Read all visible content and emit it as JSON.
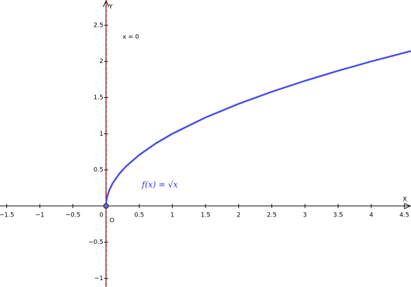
{
  "chart_data": {
    "type": "line",
    "x_label": "X",
    "y_label": "Y",
    "x": [
      0,
      0.005,
      0.02,
      0.05,
      0.1,
      0.2,
      0.3,
      0.5,
      0.75,
      1,
      1.5,
      2,
      2.5,
      3,
      3.5,
      4,
      4.6
    ],
    "series": [
      {
        "name": "f(x) = √x",
        "color": "#4a4ae6",
        "values": [
          0,
          0.071,
          0.141,
          0.224,
          0.316,
          0.447,
          0.548,
          0.707,
          0.866,
          1,
          1.225,
          1.414,
          1.581,
          1.732,
          1.871,
          2,
          2.145
        ]
      }
    ],
    "lines": [
      {
        "label": "x = 0",
        "x": 0,
        "color": "#cc0000"
      }
    ],
    "points": [
      {
        "label": "O",
        "x": 0,
        "y": 0,
        "color": "#6666cc"
      }
    ],
    "xlim": [
      -1.6,
      4.6
    ],
    "ylim": [
      -1.12,
      2.85
    ],
    "xticks": [
      {
        "value": -1.5,
        "label": "−1.5"
      },
      {
        "value": -1,
        "label": "−1"
      },
      {
        "value": -0.5,
        "label": "−0.5"
      },
      0,
      0.5,
      1,
      1.5,
      2,
      2.5,
      3,
      3.5,
      4,
      4.5
    ],
    "yticks": [
      {
        "value": -1,
        "label": "−1"
      },
      {
        "value": -0.5,
        "label": "−0.5"
      },
      0.5,
      1,
      1.5,
      2,
      2.5
    ],
    "grid": false
  }
}
